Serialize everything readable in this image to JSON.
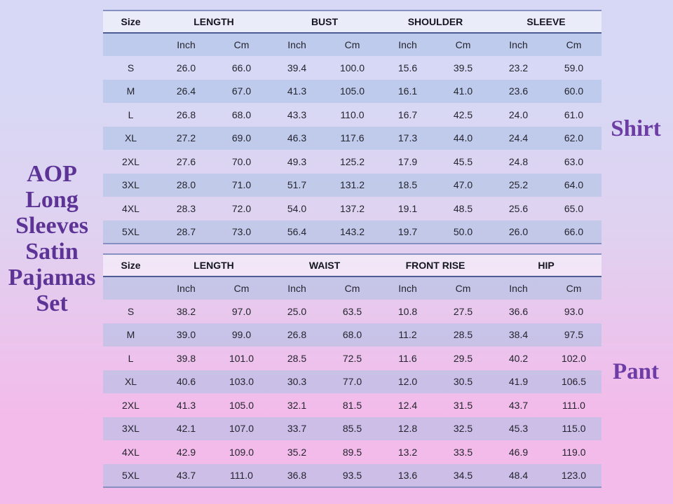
{
  "product": {
    "title": "AOP Long Sleeves Satin Pajamas Set",
    "title_lines": [
      "AOP",
      "Long",
      "Sleeves",
      "Satin",
      "Pajamas",
      "Set"
    ]
  },
  "theme": {
    "bg-top": "#D7D8F5",
    "bg-mid": "#DFD2F0",
    "bg-bottom": "#F3BBEA",
    "band": "rgba(172,193,228,0.55)",
    "header-fill": "rgba(255,255,255,0.5)",
    "border-light": "#8691C2",
    "border-dark": "#4D5C94",
    "title-purple": "#5D3496",
    "label-purple": "#6D3DA5",
    "table-text": "#23242E",
    "header-text": "#15151F"
  },
  "chart_data": [
    {
      "type": "table",
      "title": "Shirt",
      "size_label": "Size",
      "unit_labels": [
        "Inch",
        "Cm"
      ],
      "measure_groups": [
        "LENGTH",
        "BUST",
        "SHOULDER",
        "SLEEVE"
      ],
      "rows": [
        {
          "size": "S",
          "values": [
            26.0,
            66.0,
            39.4,
            100.0,
            15.6,
            39.5,
            23.2,
            59.0
          ]
        },
        {
          "size": "M",
          "values": [
            26.4,
            67.0,
            41.3,
            105.0,
            16.1,
            41.0,
            23.6,
            60.0
          ]
        },
        {
          "size": "L",
          "values": [
            26.8,
            68.0,
            43.3,
            110.0,
            16.7,
            42.5,
            24.0,
            61.0
          ]
        },
        {
          "size": "XL",
          "values": [
            27.2,
            69.0,
            46.3,
            117.6,
            17.3,
            44.0,
            24.4,
            62.0
          ]
        },
        {
          "size": "2XL",
          "values": [
            27.6,
            70.0,
            49.3,
            125.2,
            17.9,
            45.5,
            24.8,
            63.0
          ]
        },
        {
          "size": "3XL",
          "values": [
            28.0,
            71.0,
            51.7,
            131.2,
            18.5,
            47.0,
            25.2,
            64.0
          ]
        },
        {
          "size": "4XL",
          "values": [
            28.3,
            72.0,
            54.0,
            137.2,
            19.1,
            48.5,
            25.6,
            65.0
          ]
        },
        {
          "size": "5XL",
          "values": [
            28.7,
            73.0,
            56.4,
            143.2,
            19.7,
            50.0,
            26.0,
            66.0
          ]
        }
      ]
    },
    {
      "type": "table",
      "title": "Pant",
      "size_label": "Size",
      "unit_labels": [
        "Inch",
        "Cm"
      ],
      "measure_groups": [
        "LENGTH",
        "WAIST",
        "FRONT RISE",
        "HIP"
      ],
      "rows": [
        {
          "size": "S",
          "values": [
            38.2,
            97.0,
            25.0,
            63.5,
            10.8,
            27.5,
            36.6,
            93.0
          ]
        },
        {
          "size": "M",
          "values": [
            39.0,
            99.0,
            26.8,
            68.0,
            11.2,
            28.5,
            38.4,
            97.5
          ]
        },
        {
          "size": "L",
          "values": [
            39.8,
            101.0,
            28.5,
            72.5,
            11.6,
            29.5,
            40.2,
            102.0
          ]
        },
        {
          "size": "XL",
          "values": [
            40.6,
            103.0,
            30.3,
            77.0,
            12.0,
            30.5,
            41.9,
            106.5
          ]
        },
        {
          "size": "2XL",
          "values": [
            41.3,
            105.0,
            32.1,
            81.5,
            12.4,
            31.5,
            43.7,
            111.0
          ]
        },
        {
          "size": "3XL",
          "values": [
            42.1,
            107.0,
            33.7,
            85.5,
            12.8,
            32.5,
            45.3,
            115.0
          ]
        },
        {
          "size": "4XL",
          "values": [
            42.9,
            109.0,
            35.2,
            89.5,
            13.2,
            33.5,
            46.9,
            119.0
          ]
        },
        {
          "size": "5XL",
          "values": [
            43.7,
            111.0,
            36.8,
            93.5,
            13.6,
            34.5,
            48.4,
            123.0
          ]
        }
      ]
    }
  ]
}
